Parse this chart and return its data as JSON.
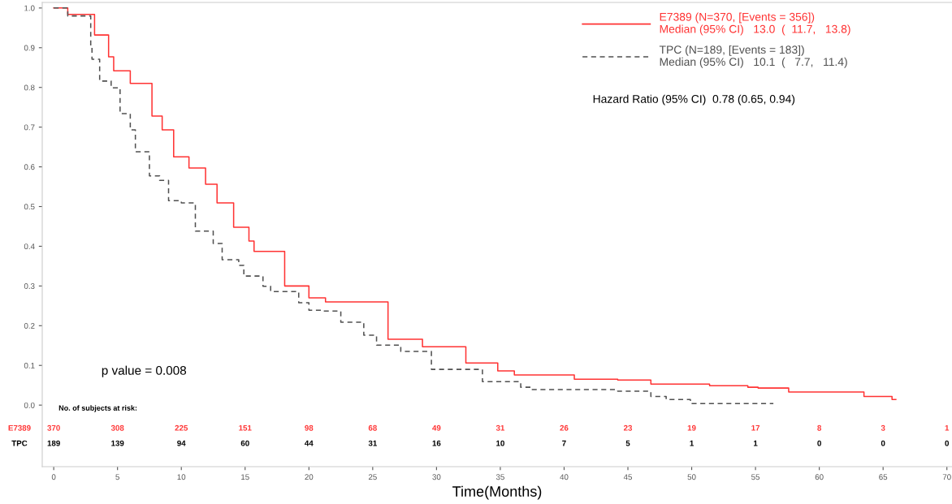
{
  "chart_data": {
    "type": "step",
    "xlabel": "Time(Months)",
    "xlim": [
      -0.9,
      70.4
    ],
    "xticks": [
      0,
      5,
      10,
      15,
      20,
      25,
      30,
      35,
      40,
      45,
      50,
      55,
      60,
      65,
      70
    ],
    "ylim": [
      -0.155,
      1.014
    ],
    "yticks": [
      {
        "value": 0,
        "label": "0.0"
      },
      0.1,
      0.2,
      0.3,
      0.4,
      0.5,
      0.6,
      0.7,
      0.8,
      0.9,
      {
        "value": 1,
        "label": "1.0"
      }
    ],
    "grid": false,
    "legend": "top right",
    "marker": "none",
    "series": [
      {
        "name": "E7389 (N=370, [Events = 356])\nMedian (95% CI)   13.0  (  11.7,   13.8)",
        "color": "#ff3333",
        "line_style": "solid",
        "x": [
          0,
          0.4,
          1.1,
          3.2,
          4.3,
          4.7,
          6.0,
          7.7,
          8.5,
          9.4,
          10.6,
          11.9,
          12.8,
          14.1,
          15.3,
          15.7,
          18.1,
          20,
          21.3,
          26.2,
          28.9,
          32.3,
          34.8,
          36.1,
          39.6,
          40.8,
          44.2,
          46.8,
          51.4,
          54.4,
          55.2,
          57.6,
          63.5,
          65.7,
          66
        ],
        "values": [
          1.0,
          1.0,
          0.984,
          0.932,
          0.877,
          0.842,
          0.81,
          0.728,
          0.693,
          0.625,
          0.597,
          0.556,
          0.509,
          0.448,
          0.413,
          0.387,
          0.3,
          0.27,
          0.26,
          0.166,
          0.147,
          0.106,
          0.086,
          0.076,
          0.076,
          0.065,
          0.063,
          0.053,
          0.049,
          0.045,
          0.043,
          0.033,
          0.022,
          0.014,
          0.014
        ]
      },
      {
        "name": "TPC (N=189, [Events = 183])\nMedian (95% CI)   10.1  (   7.7,   11.4)",
        "color": "#505050",
        "line_style": "dashed",
        "x": [
          0,
          1.1,
          2.9,
          3.0,
          3.6,
          4.5,
          5.2,
          6.0,
          6.4,
          7.5,
          8.3,
          9.0,
          10.0,
          11.1,
          12.5,
          13.2,
          14.5,
          14.9,
          16.4,
          17.0,
          19.2,
          20.0,
          21.1,
          22.5,
          24.3,
          25.3,
          26.6,
          27.2,
          29.6,
          32.7,
          33.6,
          34.8,
          36.6,
          37.4,
          44.2,
          46.8,
          48.0,
          49.9,
          56.4
        ],
        "values": [
          1.0,
          0.98,
          0.9,
          0.871,
          0.816,
          0.799,
          0.734,
          0.693,
          0.638,
          0.577,
          0.566,
          0.515,
          0.509,
          0.438,
          0.407,
          0.366,
          0.352,
          0.325,
          0.299,
          0.286,
          0.258,
          0.239,
          0.237,
          0.209,
          0.176,
          0.151,
          0.151,
          0.135,
          0.09,
          0.09,
          0.059,
          0.059,
          0.045,
          0.039,
          0.035,
          0.022,
          0.014,
          0.004,
          0.004
        ]
      }
    ],
    "annotations": [
      "Hazard Ratio (95% CI)  0.78 (0.65, 0.94)",
      "p value = 0.008",
      "No. of subjects at risk:",
      "E7389",
      "370 308 225 151 98 68 49 31 26 23 19 17 8 3 1",
      "TPC",
      "189 139 94 60 44 31 16 10 7 5 1 1 0 0 0"
    ]
  }
}
